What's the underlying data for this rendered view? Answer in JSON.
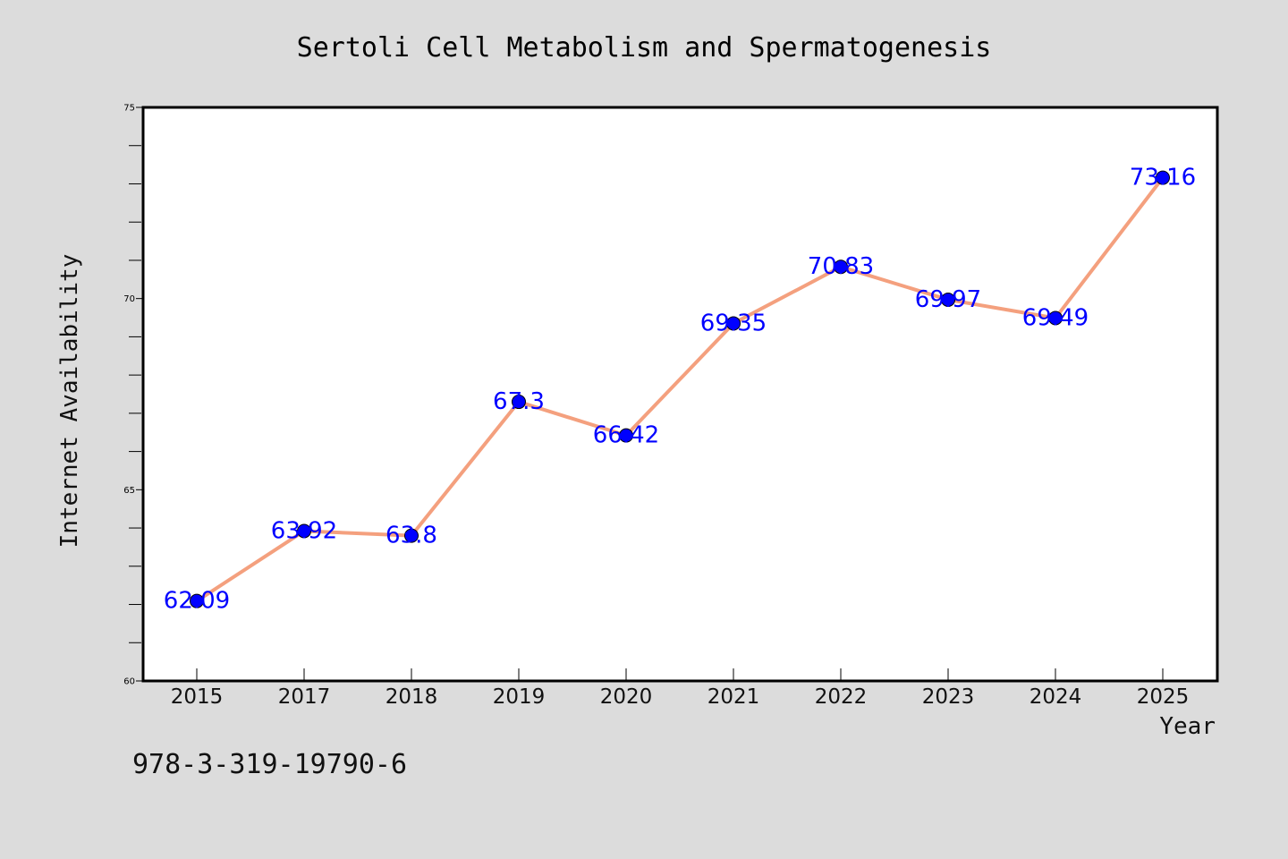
{
  "chart_data": {
    "type": "line",
    "title": "Sertoli Cell Metabolism and Spermatogenesis",
    "xlabel": "Year",
    "ylabel": "Internet Availability",
    "categories": [
      "2015",
      "2017",
      "2018",
      "2019",
      "2020",
      "2021",
      "2022",
      "2023",
      "2024",
      "2025"
    ],
    "series": [
      {
        "values": [
          62.09,
          63.92,
          63.8,
          67.3,
          66.42,
          69.35,
          70.83,
          69.97,
          69.49,
          73.16
        ],
        "data_labels": [
          "62.09",
          "63.92",
          "63.8",
          "67.3",
          "66.42",
          "69.35",
          "70.83",
          "69.97",
          "69.49",
          "73.16"
        ]
      }
    ],
    "ylim": [
      60,
      75
    ],
    "yticks": [
      "60",
      "65",
      "70",
      "75"
    ],
    "grid": false,
    "legend": "none",
    "colors": {
      "line": "#f4a07e",
      "marker": "#0000ff",
      "data_label": "#0000ff",
      "background": "#dcdcdc",
      "plot_background": "#ffffff"
    }
  },
  "footer_text": "978-3-319-19790-6"
}
